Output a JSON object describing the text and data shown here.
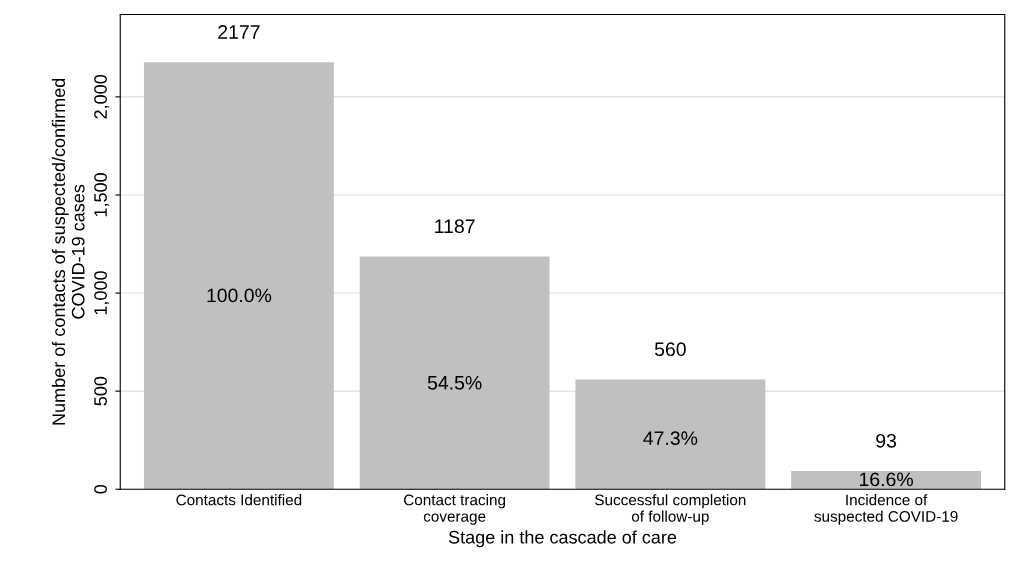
{
  "chart_data": {
    "type": "bar",
    "xlabel": "Stage in the cascade of care",
    "ylabel": "Number of contacts of suspected/confirmed\nCOVID-19 cases",
    "categories": [
      "Contacts Identified",
      "Contact tracing\ncoverage",
      "Successful completion\nof follow-up",
      "Incidence of\nsuspected COVID-19"
    ],
    "values": [
      2177,
      1187,
      560,
      93
    ],
    "color": "#c0c0c0",
    "data_labels": true,
    "ylim": [
      0,
      2420
    ],
    "yticks": [
      0,
      500,
      {
        "value": 1000,
        "label": "1,000"
      },
      {
        "value": 1500,
        "label": "1,500"
      },
      {
        "value": 2000,
        "label": "2,000"
      }
    ],
    "grid": "y",
    "annotations": [
      "100.0%",
      "54.5%",
      "47.3%",
      "16.6%"
    ]
  }
}
